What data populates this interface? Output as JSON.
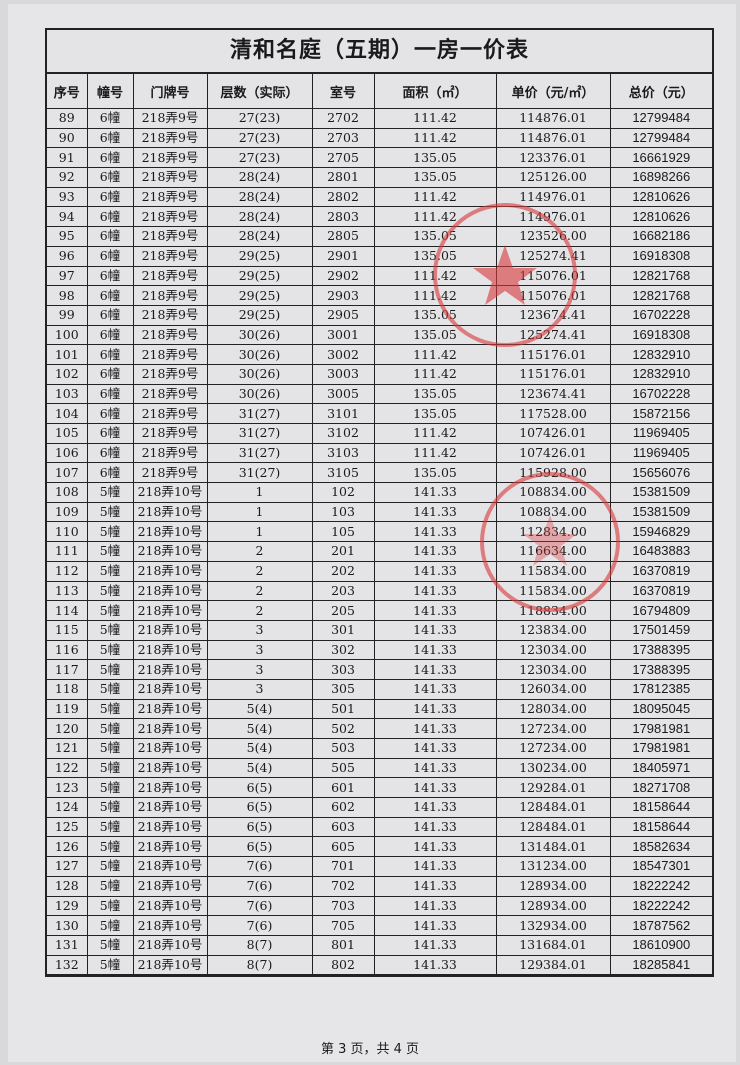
{
  "title": "清和名庭（五期）一房一价表",
  "columns": [
    "序号",
    "幢号",
    "门牌号",
    "层数（实际）",
    "室号",
    "面积（㎡）",
    "单价（元/㎡）",
    "总价（元）"
  ],
  "rows": [
    [
      "89",
      "6幢",
      "218弄9号",
      "27(23)",
      "2702",
      "111.42",
      "114876.01",
      "12799484"
    ],
    [
      "90",
      "6幢",
      "218弄9号",
      "27(23)",
      "2703",
      "111.42",
      "114876.01",
      "12799484"
    ],
    [
      "91",
      "6幢",
      "218弄9号",
      "27(23)",
      "2705",
      "135.05",
      "123376.01",
      "16661929"
    ],
    [
      "92",
      "6幢",
      "218弄9号",
      "28(24)",
      "2801",
      "135.05",
      "125126.00",
      "16898266"
    ],
    [
      "93",
      "6幢",
      "218弄9号",
      "28(24)",
      "2802",
      "111.42",
      "114976.01",
      "12810626"
    ],
    [
      "94",
      "6幢",
      "218弄9号",
      "28(24)",
      "2803",
      "111.42",
      "114976.01",
      "12810626"
    ],
    [
      "95",
      "6幢",
      "218弄9号",
      "28(24)",
      "2805",
      "135.05",
      "123526.00",
      "16682186"
    ],
    [
      "96",
      "6幢",
      "218弄9号",
      "29(25)",
      "2901",
      "135.05",
      "125274.41",
      "16918308"
    ],
    [
      "97",
      "6幢",
      "218弄9号",
      "29(25)",
      "2902",
      "111.42",
      "115076.01",
      "12821768"
    ],
    [
      "98",
      "6幢",
      "218弄9号",
      "29(25)",
      "2903",
      "111.42",
      "115076.01",
      "12821768"
    ],
    [
      "99",
      "6幢",
      "218弄9号",
      "29(25)",
      "2905",
      "135.05",
      "123674.41",
      "16702228"
    ],
    [
      "100",
      "6幢",
      "218弄9号",
      "30(26)",
      "3001",
      "135.05",
      "125274.41",
      "16918308"
    ],
    [
      "101",
      "6幢",
      "218弄9号",
      "30(26)",
      "3002",
      "111.42",
      "115176.01",
      "12832910"
    ],
    [
      "102",
      "6幢",
      "218弄9号",
      "30(26)",
      "3003",
      "111.42",
      "115176.01",
      "12832910"
    ],
    [
      "103",
      "6幢",
      "218弄9号",
      "30(26)",
      "3005",
      "135.05",
      "123674.41",
      "16702228"
    ],
    [
      "104",
      "6幢",
      "218弄9号",
      "31(27)",
      "3101",
      "135.05",
      "117528.00",
      "15872156"
    ],
    [
      "105",
      "6幢",
      "218弄9号",
      "31(27)",
      "3102",
      "111.42",
      "107426.01",
      "11969405"
    ],
    [
      "106",
      "6幢",
      "218弄9号",
      "31(27)",
      "3103",
      "111.42",
      "107426.01",
      "11969405"
    ],
    [
      "107",
      "6幢",
      "218弄9号",
      "31(27)",
      "3105",
      "135.05",
      "115928.00",
      "15656076"
    ],
    [
      "108",
      "5幢",
      "218弄10号",
      "1",
      "102",
      "141.33",
      "108834.00",
      "15381509"
    ],
    [
      "109",
      "5幢",
      "218弄10号",
      "1",
      "103",
      "141.33",
      "108834.00",
      "15381509"
    ],
    [
      "110",
      "5幢",
      "218弄10号",
      "1",
      "105",
      "141.33",
      "112834.00",
      "15946829"
    ],
    [
      "111",
      "5幢",
      "218弄10号",
      "2",
      "201",
      "141.33",
      "116634.00",
      "16483883"
    ],
    [
      "112",
      "5幢",
      "218弄10号",
      "2",
      "202",
      "141.33",
      "115834.00",
      "16370819"
    ],
    [
      "113",
      "5幢",
      "218弄10号",
      "2",
      "203",
      "141.33",
      "115834.00",
      "16370819"
    ],
    [
      "114",
      "5幢",
      "218弄10号",
      "2",
      "205",
      "141.33",
      "118834.00",
      "16794809"
    ],
    [
      "115",
      "5幢",
      "218弄10号",
      "3",
      "301",
      "141.33",
      "123834.00",
      "17501459"
    ],
    [
      "116",
      "5幢",
      "218弄10号",
      "3",
      "302",
      "141.33",
      "123034.00",
      "17388395"
    ],
    [
      "117",
      "5幢",
      "218弄10号",
      "3",
      "303",
      "141.33",
      "123034.00",
      "17388395"
    ],
    [
      "118",
      "5幢",
      "218弄10号",
      "3",
      "305",
      "141.33",
      "126034.00",
      "17812385"
    ],
    [
      "119",
      "5幢",
      "218弄10号",
      "5(4)",
      "501",
      "141.33",
      "128034.00",
      "18095045"
    ],
    [
      "120",
      "5幢",
      "218弄10号",
      "5(4)",
      "502",
      "141.33",
      "127234.00",
      "17981981"
    ],
    [
      "121",
      "5幢",
      "218弄10号",
      "5(4)",
      "503",
      "141.33",
      "127234.00",
      "17981981"
    ],
    [
      "122",
      "5幢",
      "218弄10号",
      "5(4)",
      "505",
      "141.33",
      "130234.00",
      "18405971"
    ],
    [
      "123",
      "5幢",
      "218弄10号",
      "6(5)",
      "601",
      "141.33",
      "129284.01",
      "18271708"
    ],
    [
      "124",
      "5幢",
      "218弄10号",
      "6(5)",
      "602",
      "141.33",
      "128484.01",
      "18158644"
    ],
    [
      "125",
      "5幢",
      "218弄10号",
      "6(5)",
      "603",
      "141.33",
      "128484.01",
      "18158644"
    ],
    [
      "126",
      "5幢",
      "218弄10号",
      "6(5)",
      "605",
      "141.33",
      "131484.01",
      "18582634"
    ],
    [
      "127",
      "5幢",
      "218弄10号",
      "7(6)",
      "701",
      "141.33",
      "131234.00",
      "18547301"
    ],
    [
      "128",
      "5幢",
      "218弄10号",
      "7(6)",
      "702",
      "141.33",
      "128934.00",
      "18222242"
    ],
    [
      "129",
      "5幢",
      "218弄10号",
      "7(6)",
      "703",
      "141.33",
      "128934.00",
      "18222242"
    ],
    [
      "130",
      "5幢",
      "218弄10号",
      "7(6)",
      "705",
      "141.33",
      "132934.00",
      "18787562"
    ],
    [
      "131",
      "5幢",
      "218弄10号",
      "8(7)",
      "801",
      "141.33",
      "131684.01",
      "18610900"
    ],
    [
      "132",
      "5幢",
      "218弄10号",
      "8(7)",
      "802",
      "141.33",
      "129384.01",
      "18285841"
    ]
  ],
  "footer": "第 3 页，共 4 页",
  "stamp_color": "#d9383a"
}
